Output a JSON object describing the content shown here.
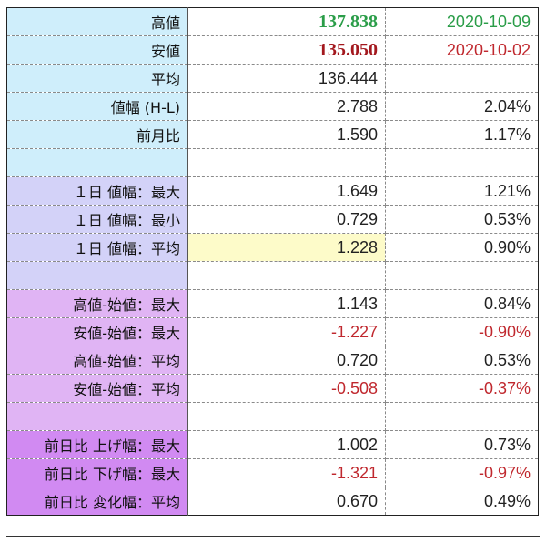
{
  "rows": [
    {
      "label": "高値",
      "v1": "137.838",
      "v2": "2020-10-09"
    },
    {
      "label": "安値",
      "v1": "135.050",
      "v2": "2020-10-02"
    },
    {
      "label": "平均",
      "v1": "136.444",
      "v2": ""
    },
    {
      "label": "値幅 (H-L)",
      "v1": "2.788",
      "v2": "2.04%"
    },
    {
      "label": "前月比",
      "v1": "1.590",
      "v2": "1.17%"
    },
    {
      "label": "",
      "v1": "",
      "v2": ""
    },
    {
      "label": "１日 値幅：最大",
      "v1": "1.649",
      "v2": "1.21%"
    },
    {
      "label": "１日 値幅：最小",
      "v1": "0.729",
      "v2": "0.53%"
    },
    {
      "label": "１日 値幅：平均",
      "v1": "1.228",
      "v2": "0.90%"
    },
    {
      "label": "",
      "v1": "",
      "v2": ""
    },
    {
      "label": "高値-始値：最大",
      "v1": "1.143",
      "v2": "0.84%"
    },
    {
      "label": "安値-始値：最大",
      "v1": "-1.227",
      "v2": "-0.90%"
    },
    {
      "label": "高値-始値：平均",
      "v1": "0.720",
      "v2": "0.53%"
    },
    {
      "label": "安値-始値：平均",
      "v1": "-0.508",
      "v2": "-0.37%"
    },
    {
      "label": "",
      "v1": "",
      "v2": ""
    },
    {
      "label": "前日比 上げ幅：最大",
      "v1": "1.002",
      "v2": "0.73%"
    },
    {
      "label": "前日比 下げ幅：最大",
      "v1": "-1.321",
      "v2": "-0.97%"
    },
    {
      "label": "前日比 変化幅：平均",
      "v1": "0.670",
      "v2": "0.49%"
    }
  ],
  "colors": {
    "group_1": "#cfeefb",
    "group_2": "#d3d2f8",
    "group_3": "#e0b4f4",
    "group_4": "#d18af2",
    "highlight": "#fdfbc9",
    "high_value": "#2a9d48",
    "low_value": "#a3181e",
    "negative": "#c0282e"
  }
}
